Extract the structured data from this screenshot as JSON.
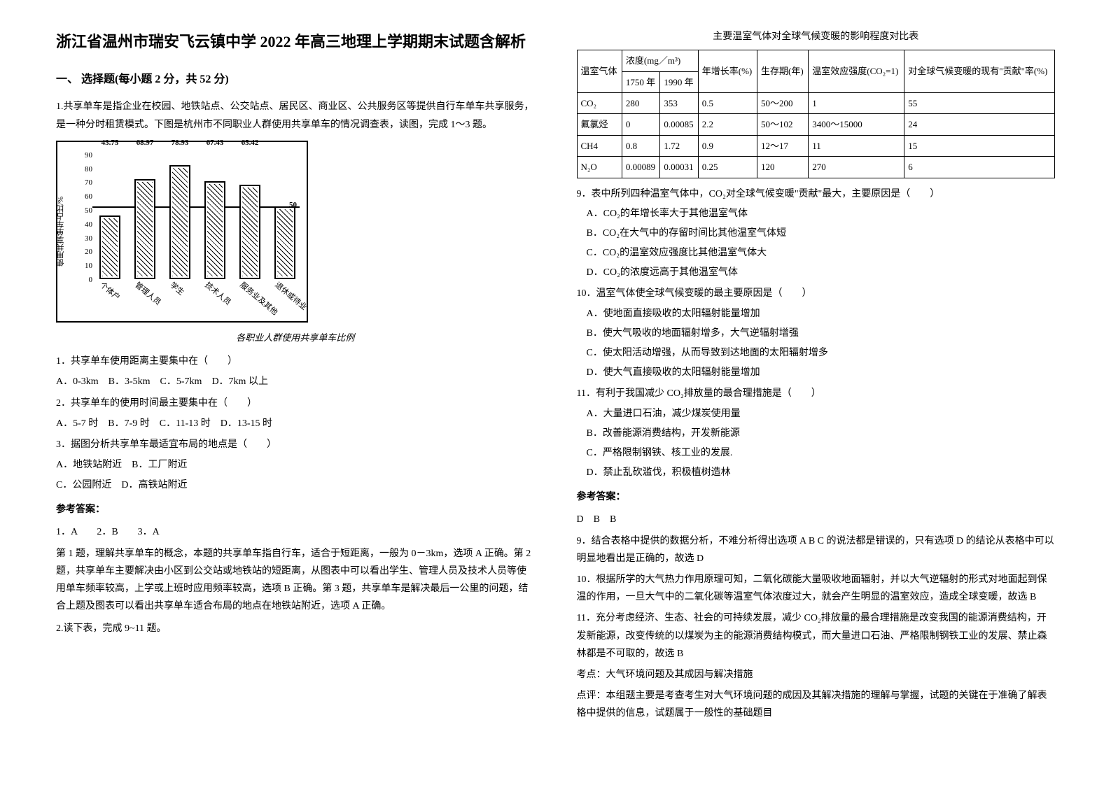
{
  "title": "浙江省温州市瑞安飞云镇中学 2022 年高三地理上学期期末试题含解析",
  "section1_heading": "一、 选择题(每小题 2 分，共 52 分)",
  "q1_intro": "1.共享单车是指企业在校园、地铁站点、公交站点、居民区、商业区、公共服务区等提供自行车单车共享服务，是一种分时租赁模式。下图是杭州市不同职业人群使用共享单车的情况调查表，读图，完成 1～3 题。",
  "chart": {
    "type": "bar",
    "y_label": "使用共享单车占比/%",
    "y_ticks": [
      "90",
      "80",
      "70",
      "60",
      "50",
      "40",
      "30",
      "20",
      "10",
      "0"
    ],
    "categories": [
      "个体户",
      "管理人员",
      "学生",
      "技术人员",
      "服务业及其他",
      "退休或待业"
    ],
    "values": [
      43.75,
      68.97,
      78.93,
      67.43,
      65.42,
      50
    ],
    "value_labels": [
      "43.75",
      "68.97",
      "78.93",
      "67.43",
      "65.42",
      ""
    ],
    "hline_value": 50,
    "hline_label": "50",
    "ylim": [
      0,
      90
    ],
    "bar_border": "#000000",
    "background": "#ffffff",
    "caption": "各职业人群使用共享单车比例"
  },
  "questions_left": [
    {
      "stem": "1．共享单车使用距离主要集中在（　　）",
      "opts_inline": "A．0-3km　B．3-5km　C．5-7km　D．7km 以上"
    },
    {
      "stem": "2．共享单车的使用时间最主要集中在（　　）",
      "opts_inline": "A．5-7 时　B．7-9 时　C．11-13 时　D．13-15 时"
    },
    {
      "stem": "3．据图分析共享单车最适宜布局的地点是（　　）",
      "opts_inline_a": "A．地铁站附近　B．工厂附近",
      "opts_inline_b": "C．公园附近　D．高铁站附近"
    }
  ],
  "answers_left_head": "参考答案：",
  "answers_left_line": "1．A　　2．B　　3．A",
  "explain_left": "第 1 题，理解共享单车的概念，本题的共享单车指自行车，适合于短距离，一般为 0－3km，选项 A 正确。第 2 题，共享单车主要解决由小区到公交站或地铁站的短距离，从图表中可以看出学生、管理人员及技术人员等使用单车频率较高，上学或上班时应用频率较高，选项 B 正确。第 3 题，共享单车是解决最后一公里的问题，结合上题及图表可以看出共享单车适合布局的地点在地铁站附近，选项 A 正确。",
  "q2_intro": "2.读下表，完成 9~11 题。",
  "table_title": "主要温室气体对全球气候变暖的影响程度对比表",
  "table": {
    "header_row1": [
      "温室气体",
      "浓度(mg／m³)",
      "",
      "年增长率(%)",
      "生存期(年)",
      "温室效应强度(CO₂=1)",
      "对全球气候变暖的现有\"贡献\"率(%)"
    ],
    "header_row2": [
      "",
      "1750 年",
      "1990 年",
      "",
      "",
      "",
      ""
    ],
    "rows": [
      [
        "CO₂",
        "280",
        "353",
        "0.5",
        "50～200",
        "1",
        "55"
      ],
      [
        "氟氯烃",
        "0",
        "0.00085",
        "2.2",
        "50～102",
        "3400～15000",
        "24"
      ],
      [
        "CH4",
        "0.8",
        "1.72",
        "0.9",
        "12～17",
        "11",
        "15"
      ],
      [
        "N₂O",
        "0.00089",
        "0.00031",
        "0.25",
        "120",
        "270",
        "6"
      ]
    ]
  },
  "questions_right": [
    {
      "stem": "9．表中所列四种温室气体中，CO₂对全球气候变暖\"贡献\"最大，主要原因是（　　）",
      "opts": [
        "A．CO₂的年增长率大于其他温室气体",
        "B．CO₂在大气中的存留时间比其他温室气体短",
        "C．CO₂的温室效应强度比其他温室气体大",
        "D．CO₂的浓度远高于其他温室气体"
      ]
    },
    {
      "stem": "10．温室气体使全球气候变暖的最主要原因是（　　）",
      "opts": [
        "A．使地面直接吸收的太阳辐射能量增加",
        "B．使大气吸收的地面辐射增多，大气逆辐射增强",
        "C．使太阳活动增强，从而导致到达地面的太阳辐射增多",
        "D．使大气直接吸收的太阳辐射能量增加"
      ]
    },
    {
      "stem": "11．有利于我国减少 CO₂排放量的最合理措施是（　　）",
      "opts": [
        "A．大量进口石油，减少煤炭使用量",
        "B．改善能源消费结构，开发新能源",
        "C．严格限制钢铁、核工业的发展.",
        "D．禁止乱砍滥伐，积极植树造林"
      ]
    }
  ],
  "answers_right_head": "参考答案：",
  "answers_right_line": "D　B　B",
  "explain_right": [
    "9．结合表格中提供的数据分析，不难分析得出选项 A B C 的说法都是错误的，只有选项 D 的结论从表格中可以明显地看出是正确的，故选 D",
    "10．根据所学的大气热力作用原理可知，二氧化碳能大量吸收地面辐射，并以大气逆辐射的形式对地面起到保温的作用，一旦大气中的二氧化碳等温室气体浓度过大，就会产生明显的温室效应，造成全球变暖，故选 B",
    "11．充分考虑经济、生态、社会的可持续发展，减少 CO₂排放量的最合理措施是改变我国的能源消费结构，开发新能源，改变传统的以煤炭为主的能源消费结构模式，而大量进口石油、严格限制钢铁工业的发展、禁止森林都是不可取的，故选 B",
    "考点：大气环境问题及其成因与解决措施",
    "点评：本组题主要是考查考生对大气环境问题的成因及其解决措施的理解与掌握，试题的关键在于准确了解表格中提供的信息，试题属于一般性的基础题目"
  ]
}
